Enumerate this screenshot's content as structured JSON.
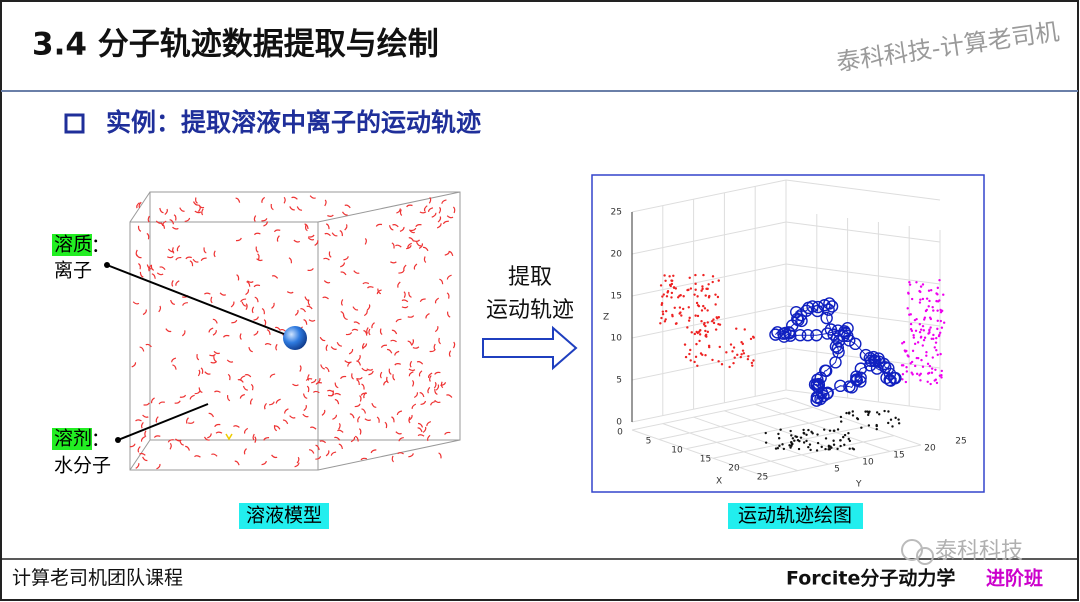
{
  "header": {
    "title": "3.4 分子轨迹数据提取与绘制",
    "watermark": "泰科科技-计算老司机"
  },
  "subtitle": "实例：提取溶液中离子的运动轨迹",
  "left_figure": {
    "solute_label": "溶质",
    "solute_colon": "：",
    "solute_name": "离子",
    "solvent_label": "溶剂",
    "solvent_colon": "：",
    "solvent_name": "水分子",
    "caption": "溶液模型"
  },
  "arrow": {
    "line1": "提取",
    "line2": "运动轨迹"
  },
  "right_figure": {
    "z_axis": "Z",
    "x_axis": "X",
    "y_axis": "Y",
    "z_ticks": [
      "0",
      "5",
      "10",
      "15",
      "20",
      "25"
    ],
    "x_ticks": [
      "0",
      "5",
      "10",
      "15",
      "20",
      "25"
    ],
    "y_ticks": [
      "5",
      "10",
      "15",
      "20",
      "25"
    ],
    "caption": "运动轨迹绘图"
  },
  "footer": {
    "course": "计算老司机团队课程",
    "topic": "Forcite分子动力学",
    "level": "进阶班",
    "wechat": "泰科科技"
  }
}
